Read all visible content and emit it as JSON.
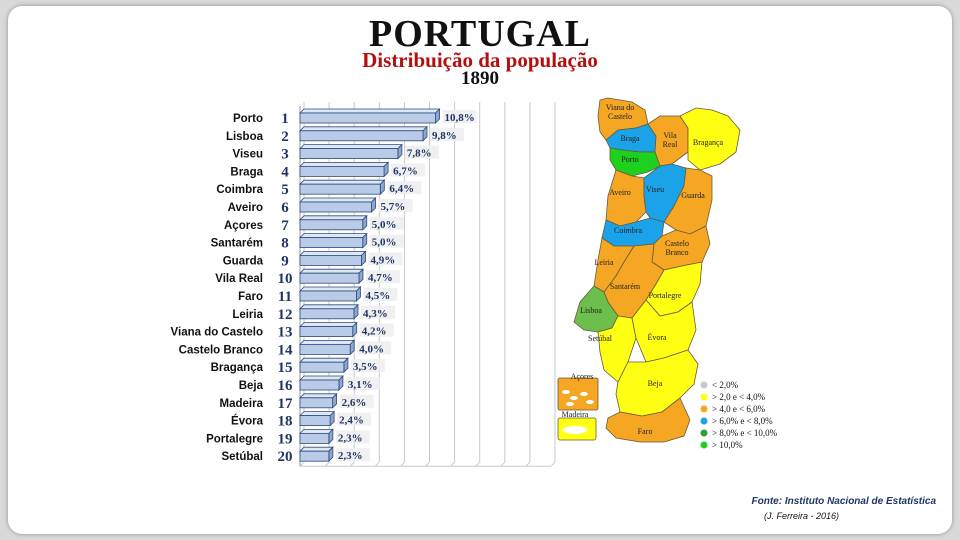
{
  "title": "PORTUGAL",
  "subtitle": "Distribuição da população",
  "year": "1890",
  "source": "Fonte: Instituto Nacional de Estatística",
  "credit": "(J. Ferreira - 2016)",
  "chart_data": {
    "type": "bar",
    "orientation": "horizontal",
    "categories": [
      "Porto",
      "Lisboa",
      "Viseu",
      "Braga",
      "Coimbra",
      "Aveiro",
      "Açores",
      "Santarém",
      "Guarda",
      "Vila Real",
      "Faro",
      "Leiria",
      "Viana do Castelo",
      "Castelo Branco",
      "Bragança",
      "Beja",
      "Madeira",
      "Évora",
      "Portalegre",
      "Setúbal"
    ],
    "ranks": [
      "1",
      "2",
      "3",
      "4",
      "5",
      "6",
      "7",
      "8",
      "9",
      "10",
      "11",
      "12",
      "13",
      "14",
      "15",
      "16",
      "17",
      "18",
      "19",
      "20"
    ],
    "values": [
      10.8,
      9.8,
      7.8,
      6.7,
      6.4,
      5.7,
      5.0,
      5.0,
      4.9,
      4.7,
      4.5,
      4.3,
      4.2,
      4.0,
      3.5,
      3.1,
      2.6,
      2.4,
      2.3,
      2.3
    ],
    "value_labels": [
      "10,8%",
      "9,8%",
      "7,8%",
      "6,7%",
      "6,4%",
      "5,7%",
      "5,0%",
      "5,0%",
      "4,9%",
      "4,7%",
      "4,5%",
      "4,3%",
      "4,2%",
      "4,0%",
      "3,5%",
      "3,1%",
      "2,6%",
      "2,4%",
      "2,3%",
      "2,3%"
    ],
    "xlim": [
      0,
      20
    ],
    "grid": true,
    "colors": {
      "bar": "#b9cbe6",
      "bar_edge": "#2c4a7e",
      "grid": "#c9c9c9"
    }
  },
  "map": {
    "districts": [
      {
        "name": "Viana do Castelo",
        "lines": [
          "Viana do",
          "Castelo"
        ],
        "color": "#f5a623"
      },
      {
        "name": "Braga",
        "lines": [
          "Braga"
        ],
        "color": "#1aa3e8"
      },
      {
        "name": "Vila Real",
        "lines": [
          "Vila",
          "Real"
        ],
        "color": "#f5a623"
      },
      {
        "name": "Bragança",
        "lines": [
          "Bragança"
        ],
        "color": "#ffff14"
      },
      {
        "name": "Porto",
        "lines": [
          "Porto"
        ],
        "color": "#1fd11f"
      },
      {
        "name": "Aveiro",
        "lines": [
          "Aveiro"
        ],
        "color": "#f5a623"
      },
      {
        "name": "Viseu",
        "lines": [
          "Viseu"
        ],
        "color": "#1aa3e8"
      },
      {
        "name": "Guarda",
        "lines": [
          "Guarda"
        ],
        "color": "#f5a623"
      },
      {
        "name": "Coimbra",
        "lines": [
          "Coimbra"
        ],
        "color": "#1aa3e8"
      },
      {
        "name": "Castelo Branco",
        "lines": [
          "Castelo",
          "Branco"
        ],
        "color": "#f5a623"
      },
      {
        "name": "Leiria",
        "lines": [
          "Leiria"
        ],
        "color": "#f5a623"
      },
      {
        "name": "Santarém",
        "lines": [
          "Santarém"
        ],
        "color": "#f5a623"
      },
      {
        "name": "Portalegre",
        "lines": [
          "Portalegre"
        ],
        "color": "#ffff14"
      },
      {
        "name": "Lisboa",
        "lines": [
          "Lisboa"
        ],
        "color": "#6bbf4a"
      },
      {
        "name": "Setúbal",
        "lines": [
          "Setúbal"
        ],
        "color": "#ffff14"
      },
      {
        "name": "Évora",
        "lines": [
          "Évora"
        ],
        "color": "#ffff14"
      },
      {
        "name": "Beja",
        "lines": [
          "Beja"
        ],
        "color": "#ffff14"
      },
      {
        "name": "Faro",
        "lines": [
          "Faro"
        ],
        "color": "#f5a623"
      },
      {
        "name": "Açores",
        "lines": [
          "Açores"
        ],
        "color": "#f5a623"
      },
      {
        "name": "Madeira",
        "lines": [
          "Madeira"
        ],
        "color": "#ffff14"
      }
    ],
    "legend": [
      {
        "label": "< 2,0%",
        "color": "#c8c8c8"
      },
      {
        "label": "> 2,0 e < 4,0%",
        "color": "#ffff14"
      },
      {
        "label": "> 4,0 e < 6,0%",
        "color": "#f5a623"
      },
      {
        "label": "> 6,0% e < 8,0%",
        "color": "#1aa3e8"
      },
      {
        "label": "> 8,0% e < 10,0%",
        "color": "#2e9e3a"
      },
      {
        "label": "> 10,0%",
        "color": "#1fd11f"
      }
    ]
  }
}
